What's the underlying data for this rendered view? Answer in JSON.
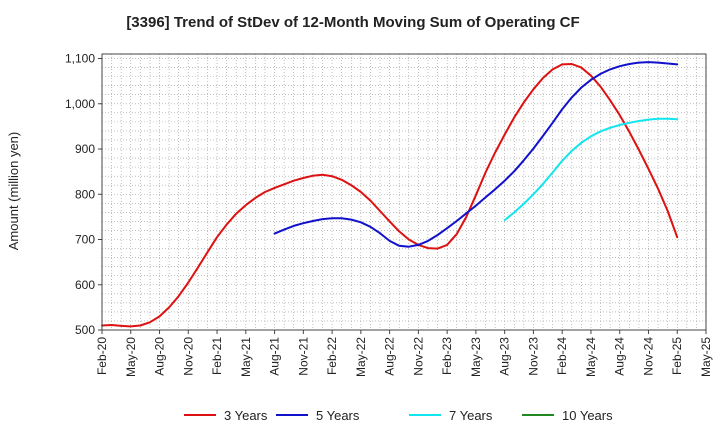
{
  "chart_data": {
    "type": "line",
    "title": "[3396]  Trend of StDev of 12-Month Moving Sum of Operating CF",
    "ylabel": "Amount (million yen)",
    "xlabel": "",
    "ylim": [
      500,
      1110
    ],
    "yticks": [
      500,
      600,
      700,
      800,
      900,
      1000,
      1100
    ],
    "ytick_labels": [
      "500",
      "600",
      "700",
      "800",
      "900",
      "1,000",
      "1,100"
    ],
    "xticks": [
      "Feb-20",
      "May-20",
      "Aug-20",
      "Nov-20",
      "Feb-21",
      "May-21",
      "Aug-21",
      "Nov-21",
      "Feb-22",
      "May-22",
      "Aug-22",
      "Nov-22",
      "Feb-23",
      "May-23",
      "Aug-23",
      "Nov-23",
      "Feb-24",
      "May-24",
      "Aug-24",
      "Nov-24",
      "Feb-25",
      "May-25"
    ],
    "grid": true,
    "legend_position": "bottom",
    "series": [
      {
        "name": "3 Years",
        "color": "#dd1111",
        "x": [
          "Feb-20",
          "Mar-20",
          "Apr-20",
          "May-20",
          "Jun-20",
          "Jul-20",
          "Aug-20",
          "Sep-20",
          "Oct-20",
          "Nov-20",
          "Dec-20",
          "Jan-21",
          "Feb-21",
          "Mar-21",
          "Apr-21",
          "May-21",
          "Jun-21",
          "Jul-21",
          "Aug-21",
          "Sep-21",
          "Oct-21",
          "Nov-21",
          "Dec-21",
          "Jan-22",
          "Feb-22",
          "Mar-22",
          "Apr-22",
          "May-22",
          "Jun-22",
          "Jul-22",
          "Aug-22",
          "Sep-22",
          "Oct-22",
          "Nov-22",
          "Dec-22",
          "Jan-23",
          "Feb-23",
          "Mar-23",
          "Apr-23",
          "May-23",
          "Jun-23",
          "Jul-23",
          "Aug-23",
          "Sep-23",
          "Oct-23",
          "Nov-23",
          "Dec-23",
          "Jan-24",
          "Feb-24",
          "Mar-24",
          "Apr-24",
          "May-24",
          "Jun-24",
          "Jul-24",
          "Aug-24",
          "Sep-24",
          "Oct-24",
          "Nov-24",
          "Dec-24",
          "Jan-25",
          "Feb-25"
        ],
        "values": [
          510,
          511,
          509,
          508,
          510,
          517,
          530,
          550,
          575,
          605,
          638,
          672,
          705,
          733,
          757,
          776,
          792,
          805,
          814,
          822,
          830,
          836,
          841,
          843,
          840,
          832,
          820,
          805,
          786,
          763,
          740,
          718,
          700,
          688,
          681,
          680,
          688,
          712,
          750,
          798,
          848,
          892,
          932,
          970,
          1003,
          1032,
          1057,
          1076,
          1087,
          1088,
          1080,
          1062,
          1038,
          1008,
          975,
          938,
          898,
          856,
          812,
          763,
          705
        ]
      },
      {
        "name": "5 Years",
        "color": "#1111cc",
        "x": [
          "Aug-21",
          "Sep-21",
          "Oct-21",
          "Nov-21",
          "Dec-21",
          "Jan-22",
          "Feb-22",
          "Mar-22",
          "Apr-22",
          "May-22",
          "Jun-22",
          "Jul-22",
          "Aug-22",
          "Sep-22",
          "Oct-22",
          "Nov-22",
          "Dec-22",
          "Jan-23",
          "Feb-23",
          "Mar-23",
          "Apr-23",
          "May-23",
          "Jun-23",
          "Jul-23",
          "Aug-23",
          "Sep-23",
          "Oct-23",
          "Nov-23",
          "Dec-23",
          "Jan-24",
          "Feb-24",
          "Mar-24",
          "Apr-24",
          "May-24",
          "Jun-24",
          "Jul-24",
          "Aug-24",
          "Sep-24",
          "Oct-24",
          "Nov-24",
          "Dec-24",
          "Jan-25",
          "Feb-25"
        ],
        "values": [
          713,
          722,
          730,
          736,
          741,
          745,
          747,
          747,
          744,
          738,
          728,
          714,
          697,
          686,
          684,
          688,
          697,
          710,
          725,
          741,
          758,
          775,
          793,
          811,
          830,
          851,
          875,
          901,
          929,
          958,
          988,
          1014,
          1036,
          1053,
          1066,
          1076,
          1083,
          1088,
          1091,
          1092,
          1091,
          1089,
          1087
        ]
      },
      {
        "name": "7 Years",
        "color": "#11e5ee",
        "x": [
          "Aug-23",
          "Sep-23",
          "Oct-23",
          "Nov-23",
          "Dec-23",
          "Jan-24",
          "Feb-24",
          "Mar-24",
          "Apr-24",
          "May-24",
          "Jun-24",
          "Jul-24",
          "Aug-24",
          "Sep-24",
          "Oct-24",
          "Nov-24",
          "Dec-24",
          "Jan-25",
          "Feb-25"
        ],
        "values": [
          743,
          760,
          779,
          800,
          823,
          848,
          874,
          896,
          914,
          928,
          939,
          947,
          953,
          958,
          962,
          965,
          967,
          967,
          966
        ]
      },
      {
        "name": "10 Years",
        "color": "#228822",
        "x": [],
        "values": []
      }
    ]
  }
}
